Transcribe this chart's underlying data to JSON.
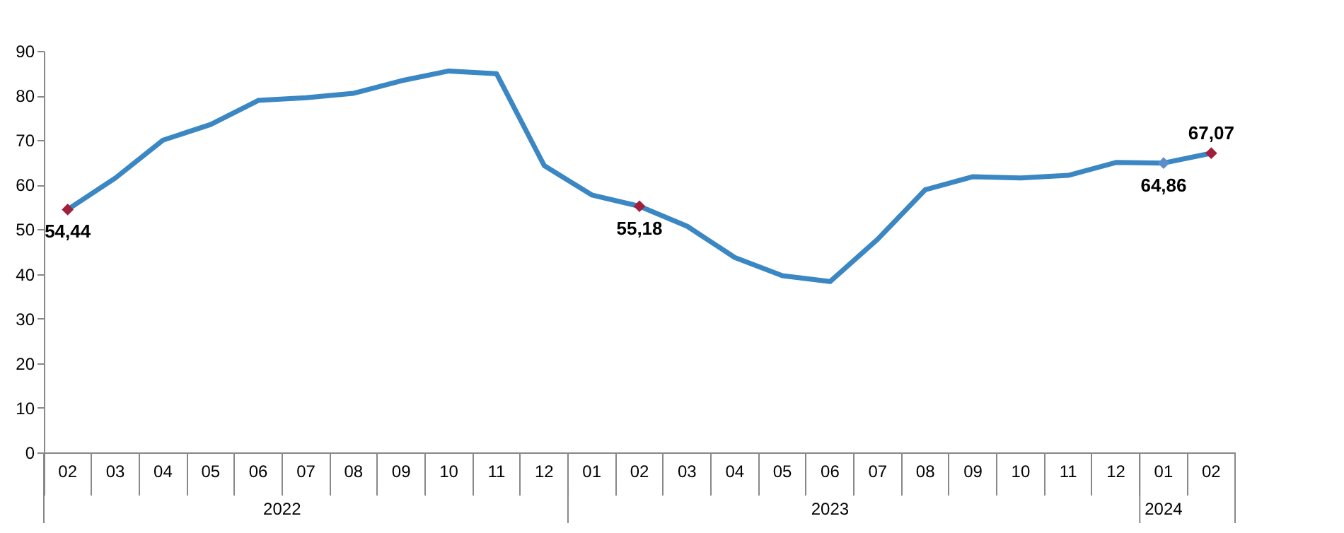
{
  "chart_data": {
    "type": "line",
    "categories": [
      "02",
      "03",
      "04",
      "05",
      "06",
      "07",
      "08",
      "09",
      "10",
      "11",
      "12",
      "01",
      "02",
      "03",
      "04",
      "05",
      "06",
      "07",
      "08",
      "09",
      "10",
      "11",
      "12",
      "01",
      "02"
    ],
    "series": [
      {
        "color": "#3a87c4",
        "values": [
          54.44,
          61.5,
          70.0,
          73.5,
          78.9,
          79.5,
          80.5,
          83.3,
          85.5,
          84.9,
          64.3,
          57.7,
          55.18,
          50.7,
          43.7,
          39.6,
          38.3,
          47.8,
          58.9,
          61.8,
          61.5,
          62.1,
          65.0,
          64.86,
          67.07
        ],
        "value_labels": [
          "54,44",
          null,
          null,
          null,
          null,
          null,
          null,
          null,
          null,
          null,
          null,
          null,
          "55,18",
          null,
          null,
          null,
          null,
          null,
          null,
          null,
          null,
          null,
          null,
          "64,86",
          "67,07"
        ],
        "colors": [
          "#a0203c",
          null,
          null,
          null,
          null,
          null,
          null,
          null,
          null,
          null,
          null,
          null,
          "#a0203c",
          null,
          null,
          null,
          null,
          null,
          null,
          null,
          null,
          null,
          null,
          "#5b8ec9",
          "#a0203c"
        ]
      }
    ],
    "annotations": [
      "2022",
      "2023",
      "2024"
    ],
    "ylim": [
      0,
      90
    ],
    "yticks": [
      0,
      10,
      20,
      30,
      40,
      50,
      60,
      70,
      80,
      90
    ],
    "grid": false,
    "line_style": "solid"
  }
}
